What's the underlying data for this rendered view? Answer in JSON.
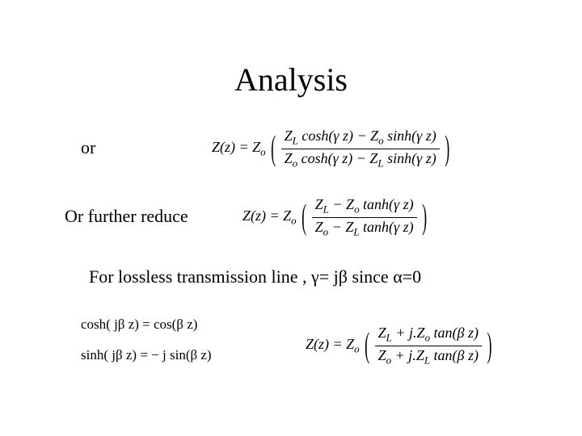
{
  "title": "Analysis",
  "line1_label": "or",
  "line2_label": "Or further reduce",
  "lossless_prefix": "For lossless transmission line , ",
  "lossless_gamma": "γ",
  "lossless_eq_mid": "= j",
  "lossless_beta": "β",
  "lossless_since": "  since  ",
  "lossless_alpha": "α",
  "lossless_eq_zero": "=0",
  "eq1": {
    "lhs": "Z(z) = Z",
    "lhs_sub": "o",
    "num_a": "Z",
    "num_a_sub": "L",
    "num_f1": " cosh(γ z) − ",
    "num_b": "Z",
    "num_b_sub": "o",
    "num_f2": " sinh(γ z)",
    "den_a": "Z",
    "den_a_sub": "o",
    "den_f1": " cosh(γ z) − ",
    "den_b": "Z",
    "den_b_sub": "L",
    "den_f2": " sinh(γ z)"
  },
  "eq2": {
    "lhs": "Z(z) = Z",
    "lhs_sub": "o",
    "num_a": "Z",
    "num_a_sub": "L",
    "num_mid": " − ",
    "num_b": "Z",
    "num_b_sub": "o",
    "num_f": " tanh(γ z)",
    "den_a": "Z",
    "den_a_sub": "o",
    "den_mid": " − ",
    "den_b": "Z",
    "den_b_sub": "L",
    "den_f": " tanh(γ z)"
  },
  "hyp1": "cosh( jβ z) = cos(β z)",
  "hyp2": "sinh( jβ z) = − j sin(β z)",
  "eq3": {
    "lhs": "Z(z) = Z",
    "lhs_sub": "o",
    "num_a": "Z",
    "num_a_sub": "L",
    "num_mid": " + j.",
    "num_b": "Z",
    "num_b_sub": "o",
    "num_f": " tan(β z)",
    "den_a": "Z",
    "den_a_sub": "o",
    "den_mid": " + j.",
    "den_b": "Z",
    "den_b_sub": "L",
    "den_f": " tan(β z)"
  },
  "style": {
    "background": "#ffffff",
    "text_color": "#000000",
    "title_fontsize": 40,
    "body_fontsize": 22,
    "eq_fontsize": 18,
    "font_family": "Times New Roman"
  }
}
